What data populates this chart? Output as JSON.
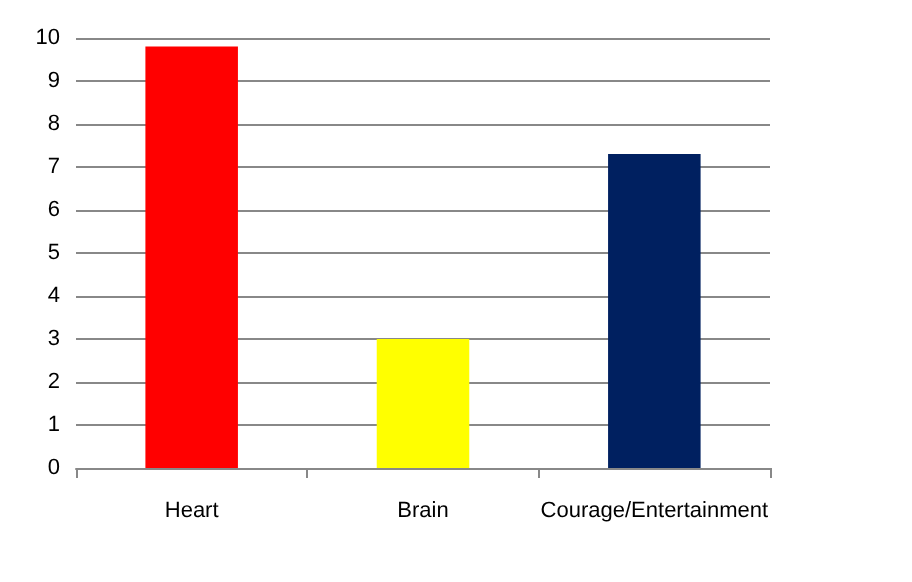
{
  "chart_data": {
    "type": "bar",
    "categories": [
      "Heart",
      "Brain",
      "Courage/Entertainment"
    ],
    "values": [
      9.8,
      3.0,
      7.3
    ],
    "colors": [
      "#ff0000",
      "#ffff00",
      "#002060"
    ],
    "ylim": [
      0,
      10
    ],
    "yticks": [
      0,
      1,
      2,
      3,
      4,
      5,
      6,
      7,
      8,
      9,
      10
    ],
    "grid": "y"
  }
}
